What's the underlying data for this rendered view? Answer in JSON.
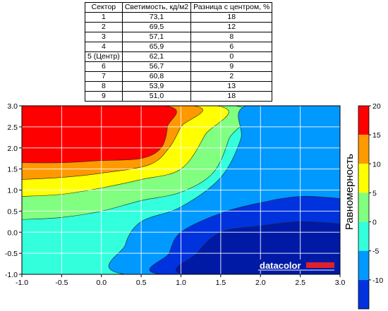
{
  "table": {
    "headers": [
      "Сектор",
      "Светимость, кд/м2",
      "Разница с центром, %"
    ],
    "rows": [
      [
        "1",
        "73,1",
        "18"
      ],
      [
        "2",
        "69,5",
        "12"
      ],
      [
        "3",
        "57,1",
        "8"
      ],
      [
        "4",
        "65,9",
        "6"
      ],
      [
        "5 (Центр)",
        "62,1",
        "0"
      ],
      [
        "6",
        "56,7",
        "9"
      ],
      [
        "7",
        "60,8",
        "2"
      ],
      [
        "8",
        "53,9",
        "13"
      ],
      [
        "9",
        "51,0",
        "18"
      ]
    ]
  },
  "chart_data": {
    "type": "contour",
    "xlim": [
      -1.0,
      3.0
    ],
    "ylim": [
      -1.0,
      3.0
    ],
    "x_ticks": [
      "-1.0",
      "-0.5",
      "0.0",
      "0.5",
      "1.0",
      "1.5",
      "2.0",
      "2.5",
      "3.0"
    ],
    "y_ticks": [
      "3.0",
      "2.5",
      "2.0",
      "1.5",
      "1.0",
      "0.5",
      "0.0",
      "-0.5",
      "-1.0"
    ],
    "grid": true,
    "colorbar": {
      "title": "Равномерность",
      "ticks": [
        "20",
        "15",
        "10",
        "5",
        "0",
        "-5",
        "-10"
      ],
      "levels": [
        20,
        15,
        10,
        5,
        0,
        -5,
        -10,
        -15
      ],
      "bands": [
        {
          "from": 15,
          "to": 20,
          "color": "#ff0000"
        },
        {
          "from": 10,
          "to": 15,
          "color": "#ff9900"
        },
        {
          "from": 5,
          "to": 10,
          "color": "#ffff00"
        },
        {
          "from": 0,
          "to": 5,
          "color": "#80ff80"
        },
        {
          "from": -5,
          "to": 0,
          "color": "#33ffdd"
        },
        {
          "from": -10,
          "to": -5,
          "color": "#0099ff"
        },
        {
          "from": -15,
          "to": -10,
          "color": "#0033dd"
        }
      ]
    },
    "regions": [
      {
        "level": "0..5",
        "color": "#80ff80",
        "points": [
          [
            -1.0,
            3.0
          ],
          [
            1.68,
            3.0
          ],
          [
            1.6,
            2.2
          ],
          [
            1.4,
            1.4
          ],
          [
            1.0,
            0.95
          ],
          [
            0.5,
            0.75
          ],
          [
            0.0,
            0.5
          ],
          [
            -0.5,
            0.35
          ],
          [
            -1.0,
            0.3
          ]
        ]
      },
      {
        "level": "5..10",
        "color": "#ffff00",
        "points": [
          [
            -1.0,
            3.0
          ],
          [
            1.45,
            3.0
          ],
          [
            1.3,
            2.3
          ],
          [
            1.0,
            1.5
          ],
          [
            0.5,
            1.25
          ],
          [
            0.0,
            1.05
          ],
          [
            -0.5,
            0.9
          ],
          [
            -1.0,
            0.85
          ]
        ]
      },
      {
        "level": "10..15",
        "color": "#ff9900",
        "points": [
          [
            -1.0,
            3.0
          ],
          [
            1.15,
            3.0
          ],
          [
            1.0,
            2.5
          ],
          [
            0.85,
            2.0
          ],
          [
            0.6,
            1.6
          ],
          [
            0.0,
            1.4
          ],
          [
            -0.5,
            1.3
          ],
          [
            -1.0,
            1.25
          ]
        ]
      },
      {
        "level": "15..20",
        "color": "#ff0000",
        "points": [
          [
            -1.0,
            3.0
          ],
          [
            0.8,
            3.0
          ],
          [
            0.83,
            2.5
          ],
          [
            0.75,
            2.0
          ],
          [
            0.5,
            1.75
          ],
          [
            0.0,
            1.7
          ],
          [
            -0.5,
            1.65
          ],
          [
            -1.0,
            1.65
          ]
        ]
      },
      {
        "level": "-10..-5",
        "color": "#0099ff",
        "points": [
          [
            3.0,
            3.0
          ],
          [
            1.82,
            3.0
          ],
          [
            1.75,
            2.2
          ],
          [
            1.5,
            1.3
          ],
          [
            1.0,
            0.6
          ],
          [
            0.5,
            0.25
          ],
          [
            0.3,
            -0.3
          ],
          [
            0.3,
            -1.0
          ],
          [
            3.0,
            -1.0
          ]
        ]
      },
      {
        "level": "-15..-10",
        "color": "#0033dd",
        "points": [
          [
            3.0,
            0.8
          ],
          [
            2.5,
            0.85
          ],
          [
            2.0,
            0.7
          ],
          [
            1.5,
            0.45
          ],
          [
            1.0,
            0.0
          ],
          [
            0.85,
            -0.5
          ],
          [
            0.75,
            -1.0
          ],
          [
            3.0,
            -1.0
          ]
        ]
      },
      {
        "level": "<-15",
        "color": "#001aa6",
        "points": [
          [
            3.0,
            0.2
          ],
          [
            2.5,
            0.25
          ],
          [
            2.0,
            0.15
          ],
          [
            1.5,
            0.0
          ],
          [
            1.2,
            -0.5
          ],
          [
            1.05,
            -1.0
          ],
          [
            3.0,
            -1.0
          ]
        ]
      }
    ],
    "background_color": "#33ffdd"
  },
  "watermark": {
    "text": "datacolor"
  }
}
